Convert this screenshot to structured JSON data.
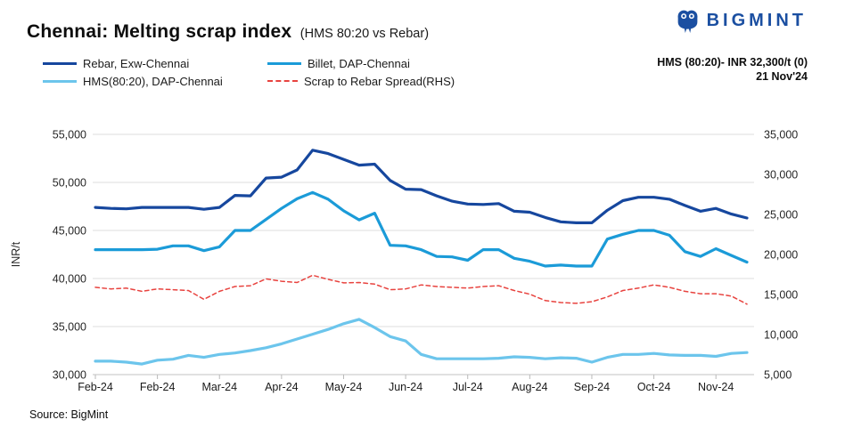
{
  "header": {
    "title": "Chennai: Melting scrap index",
    "subtitle": "(HMS 80:20 vs Rebar)",
    "brand": "BIGMINT",
    "annotation_line1": "HMS (80:20)- INR 32,300/t (0)",
    "annotation_line2": "21 Nov'24"
  },
  "legend": [
    {
      "label": "Rebar, Exw-Chennai",
      "color": "#16479e",
      "dashed": false
    },
    {
      "label": "Billet, DAP-Chennai",
      "color": "#1b9bd8",
      "dashed": false
    },
    {
      "label": "HMS(80:20), DAP-Chennai",
      "color": "#6cc5ec",
      "dashed": false
    },
    {
      "label": "Scrap to Rebar Spread(RHS)",
      "color": "#e8433f",
      "dashed": true
    }
  ],
  "footer": {
    "source": "Source: BigMint"
  },
  "chart_data": {
    "type": "line",
    "title": "Chennai: Melting scrap index (HMS 80:20 vs Rebar)",
    "left_axis": {
      "label": "INR/t",
      "min": 30000,
      "max": 55000,
      "tick_step": 5000,
      "tick_labels": [
        "55,000",
        "50,000",
        "45,000",
        "40,000",
        "35,000",
        "30,000"
      ]
    },
    "right_axis": {
      "label": "RHS",
      "min": 5000,
      "max": 35000,
      "tick_step": 5000,
      "tick_labels": [
        "35,000",
        "30,000",
        "25,000",
        "20,000",
        "15,000",
        "10,000",
        "5,000"
      ]
    },
    "x_tick_labels": [
      "Feb-24",
      "Feb-24",
      "Mar-24",
      "Apr-24",
      "May-24",
      "Jun-24",
      "Jul-24",
      "Aug-24",
      "Sep-24",
      "Oct-24",
      "Nov-24"
    ],
    "x_tick_every": 4,
    "x_dates": [
      "2024-02-01",
      "2024-02-08",
      "2024-02-15",
      "2024-02-22",
      "2024-02-29",
      "2024-03-07",
      "2024-03-14",
      "2024-03-21",
      "2024-03-28",
      "2024-04-04",
      "2024-04-11",
      "2024-04-18",
      "2024-04-25",
      "2024-05-02",
      "2024-05-09",
      "2024-05-16",
      "2024-05-23",
      "2024-05-30",
      "2024-06-06",
      "2024-06-13",
      "2024-06-20",
      "2024-06-27",
      "2024-07-04",
      "2024-07-11",
      "2024-07-18",
      "2024-07-25",
      "2024-08-01",
      "2024-08-08",
      "2024-08-15",
      "2024-08-22",
      "2024-08-29",
      "2024-09-05",
      "2024-09-12",
      "2024-09-19",
      "2024-09-26",
      "2024-10-03",
      "2024-10-10",
      "2024-10-17",
      "2024-10-24",
      "2024-10-31",
      "2024-11-07",
      "2024-11-14",
      "2024-11-21"
    ],
    "series": [
      {
        "name": "Rebar, Exw-Chennai",
        "axis": "left",
        "color": "#16479e",
        "width": 3.2,
        "dashed": false,
        "values": [
          47400,
          47300,
          47250,
          47400,
          47400,
          47400,
          47400,
          47200,
          47400,
          48650,
          48600,
          50450,
          50550,
          51300,
          53350,
          53000,
          52400,
          51800,
          51900,
          50200,
          49300,
          49250,
          48600,
          48050,
          47750,
          47700,
          47800,
          47000,
          46900,
          46350,
          45900,
          45800,
          45800,
          47100,
          48100,
          48450,
          48450,
          48250,
          47600,
          47000,
          47300,
          46700,
          46300
        ]
      },
      {
        "name": "Billet, DAP-Chennai",
        "axis": "left",
        "color": "#1b9bd8",
        "width": 3.2,
        "dashed": false,
        "values": [
          43000,
          43000,
          43000,
          43000,
          43050,
          43400,
          43400,
          42900,
          43300,
          45000,
          45000,
          46150,
          47300,
          48300,
          48950,
          48250,
          47050,
          46100,
          46800,
          43450,
          43400,
          43000,
          42300,
          42250,
          41900,
          43000,
          43000,
          42100,
          41800,
          41300,
          41400,
          41300,
          41300,
          44100,
          44600,
          45000,
          45000,
          44500,
          42800,
          42300,
          43100,
          42400,
          41700
        ]
      },
      {
        "name": "HMS(80:20), DAP-Chennai",
        "axis": "left",
        "color": "#6cc5ec",
        "width": 3.2,
        "dashed": false,
        "values": [
          31400,
          31400,
          31300,
          31100,
          31500,
          31600,
          32000,
          31800,
          32100,
          32250,
          32500,
          32800,
          33200,
          33700,
          34200,
          34700,
          35300,
          35750,
          34900,
          33950,
          33500,
          32100,
          31650,
          31650,
          31650,
          31650,
          31700,
          31850,
          31800,
          31650,
          31750,
          31700,
          31300,
          31800,
          32100,
          32100,
          32200,
          32050,
          32000,
          32000,
          31900,
          32200,
          32300
        ]
      },
      {
        "name": "Scrap to Rebar Spread(RHS)",
        "axis": "right",
        "color": "#e8433f",
        "width": 1.5,
        "dashed": true,
        "values": [
          15900,
          15700,
          15800,
          15400,
          15700,
          15600,
          15500,
          14400,
          15400,
          16000,
          16100,
          16950,
          16650,
          16500,
          17400,
          16900,
          16450,
          16500,
          16300,
          15600,
          15700,
          16200,
          16000,
          15900,
          15800,
          16000,
          16100,
          15500,
          15050,
          14250,
          14000,
          13900,
          14100,
          14700,
          15500,
          15800,
          16200,
          15900,
          15400,
          15100,
          15100,
          14800,
          13800
        ]
      }
    ]
  }
}
